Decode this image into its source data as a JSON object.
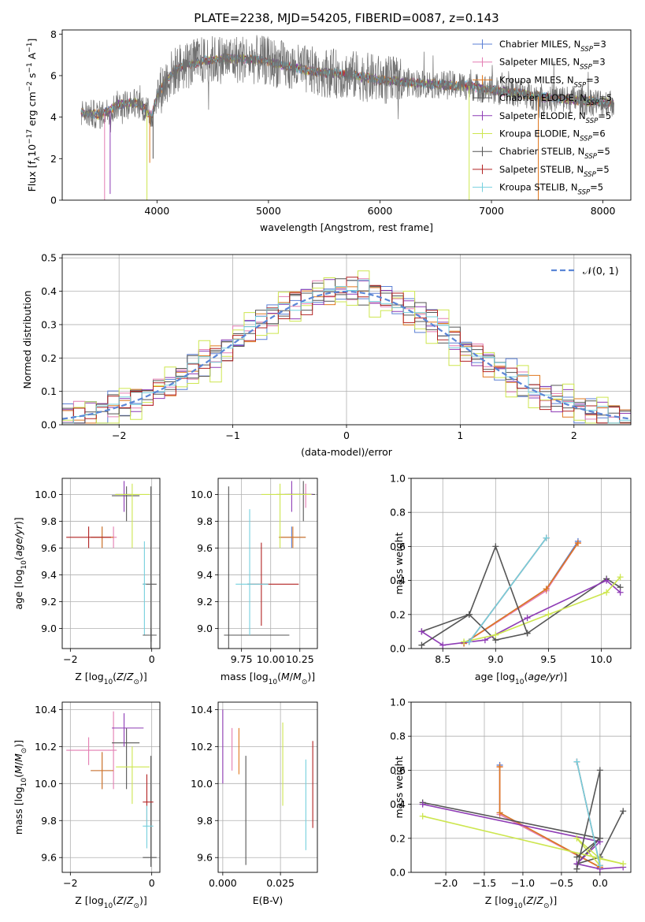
{
  "colors": [
    "#5b7fd4",
    "#e37db2",
    "#e0781f",
    "#555555",
    "#8e3bb5",
    "#cde64f",
    "#555555",
    "#b22222",
    "#74d0de"
  ],
  "legend": {
    "series": [
      {
        "prefix": "Chabrier MILES, N",
        "sub": "SSP",
        "suffix": "=3"
      },
      {
        "prefix": "Salpeter MILES, N",
        "sub": "SSP",
        "suffix": "=3"
      },
      {
        "prefix": "Kroupa MILES, N",
        "sub": "SSP",
        "suffix": "=3"
      },
      {
        "prefix": "Chabrier ELODIE, N",
        "sub": "SSP",
        "suffix": "=5"
      },
      {
        "prefix": "Salpeter ELODIE, N",
        "sub": "SSP",
        "suffix": "=5"
      },
      {
        "prefix": "Kroupa ELODIE, N",
        "sub": "SSP",
        "suffix": "=6"
      },
      {
        "prefix": "Chabrier STELIB, N",
        "sub": "SSP",
        "suffix": "=5"
      },
      {
        "prefix": "Salpeter STELIB, N",
        "sub": "SSP",
        "suffix": "=5"
      },
      {
        "prefix": "Kroupa STELIB, N",
        "sub": "SSP",
        "suffix": "=5"
      }
    ],
    "normal": "𝒩(0, 1)"
  },
  "chart_data": [
    {
      "id": "spectrum",
      "type": "line",
      "title": "PLATE=2238, MJD=54205, FIBERID=0087, z=0.143",
      "xlabel": "wavelength [Angstrom, rest frame]",
      "ylabel": "Flux [f_λ 10^-17 erg cm^-2 s^-1 A^-1]",
      "xlim": [
        3150,
        8250
      ],
      "ylim": [
        0,
        8.2
      ],
      "xticks": [
        4000,
        5000,
        6000,
        7000,
        8000
      ],
      "yticks": [
        0,
        2,
        4,
        6,
        8
      ],
      "continuum": [
        [
          3320,
          4.2
        ],
        [
          3500,
          4.1
        ],
        [
          3650,
          4.6
        ],
        [
          3800,
          4.7
        ],
        [
          3900,
          4.4
        ],
        [
          3950,
          4.0
        ],
        [
          4000,
          5.0
        ],
        [
          4100,
          5.9
        ],
        [
          4200,
          6.4
        ],
        [
          4400,
          6.7
        ],
        [
          4600,
          6.8
        ],
        [
          4800,
          6.8
        ],
        [
          5000,
          6.7
        ],
        [
          5200,
          6.4
        ],
        [
          5400,
          6.2
        ],
        [
          5600,
          6.1
        ],
        [
          5800,
          6.0
        ],
        [
          6000,
          5.8
        ],
        [
          6200,
          5.7
        ],
        [
          6400,
          5.6
        ],
        [
          6600,
          5.55
        ],
        [
          6800,
          5.5
        ],
        [
          7000,
          5.3
        ],
        [
          7200,
          5.2
        ],
        [
          7400,
          5.0
        ],
        [
          7600,
          4.9
        ],
        [
          7800,
          4.8
        ],
        [
          8000,
          4.7
        ],
        [
          8100,
          4.7
        ]
      ],
      "drops": [
        [
          3530,
          0.0
        ],
        [
          3580,
          0.3
        ],
        [
          3910,
          0.0
        ],
        [
          3935,
          1.8
        ],
        [
          3965,
          2.0
        ],
        [
          6800,
          0.0
        ],
        [
          7420,
          0.0
        ]
      ],
      "grid": false,
      "legend": "top-right"
    },
    {
      "id": "hist",
      "type": "bar",
      "xlabel": "(data-model)/error",
      "ylabel": "Normed distribution",
      "xlim": [
        -2.5,
        2.5
      ],
      "ylim": [
        0,
        0.51
      ],
      "xticks": [
        -2,
        -1,
        0,
        1,
        2
      ],
      "yticks": [
        0.0,
        0.1,
        0.2,
        0.3,
        0.4,
        0.5
      ],
      "bin_edges_start": -2.5,
      "bin_width": 0.1,
      "spread": [
        [
          0.02,
          -0.01,
          0.01,
          -0.015,
          0.012,
          -0.012,
          0.015,
          -0.02,
          0.0
        ],
        [
          -0.01,
          0.02,
          0.0,
          0.02,
          -0.015,
          0.01,
          -0.01,
          0.015,
          0.0
        ],
        [
          0.015,
          0.0,
          -0.02,
          -0.01,
          0.02,
          0.03,
          0.01,
          -0.015,
          0.005
        ],
        [
          -0.02,
          0.01,
          0.015,
          0.0,
          0.01,
          -0.02,
          0.02,
          0.0,
          0.01
        ],
        [
          0.03,
          -0.02,
          0.0,
          0.02,
          0.0,
          -0.03,
          -0.01,
          0.02,
          0.01
        ],
        [
          -0.015,
          0.02,
          0.01,
          -0.02,
          0.015,
          0.04,
          0.0,
          -0.01,
          0.02
        ],
        [
          0.0,
          -0.01,
          0.02,
          0.01,
          -0.02,
          -0.04,
          0.015,
          0.02,
          -0.01
        ]
      ],
      "normal_curve": {
        "mean": 0,
        "sigma": 1
      },
      "legend": "top-right",
      "grid": true
    },
    {
      "id": "age_z",
      "type": "scatter",
      "xlabel": "Z [log10(Z/Z⊙)]",
      "ylabel": "age  [log10(age/yr)]",
      "xlim": [
        -2.2,
        0.2
      ],
      "ylim": [
        8.85,
        10.12
      ],
      "xticks": [
        -2,
        0
      ],
      "yticks": [
        9.0,
        9.2,
        9.4,
        9.6,
        9.8,
        10.0
      ],
      "points": [
        {
          "x": -1.22,
          "y": 9.68,
          "xe": [
            -1.5,
            -0.94
          ],
          "ye": [
            9.6,
            9.76
          ],
          "s": 0
        },
        {
          "x": -0.94,
          "y": 9.68,
          "xe": [
            -1.02,
            -0.86
          ],
          "ye": [
            9.6,
            9.76
          ],
          "s": 1
        },
        {
          "x": -1.22,
          "y": 9.68,
          "xe": [
            -1.5,
            -0.94
          ],
          "ye": [
            9.6,
            9.76
          ],
          "s": 2
        },
        {
          "x": -0.62,
          "y": 9.99,
          "xe": [
            -0.98,
            -0.3
          ],
          "ye": [
            9.8,
            10.06
          ],
          "s": 3
        },
        {
          "x": -0.68,
          "y": 10.0,
          "xe": [
            -0.88,
            -0.5
          ],
          "ye": [
            9.87,
            10.1
          ],
          "s": 4
        },
        {
          "x": -0.48,
          "y": 10.0,
          "xe": [
            -0.9,
            -0.05
          ],
          "ye": [
            9.6,
            10.08
          ],
          "s": 5
        },
        {
          "x": -0.02,
          "y": 9.33,
          "xe": [
            -0.22,
            0.12
          ],
          "ye": [
            8.6,
            10.06
          ],
          "s": 6
        },
        {
          "x": -1.55,
          "y": 9.68,
          "xe": [
            -2.1,
            -1.0
          ],
          "ye": [
            9.6,
            9.76
          ],
          "s": 7
        },
        {
          "x": -0.18,
          "y": 9.33,
          "xe": [
            -0.22,
            -0.14
          ],
          "ye": [
            8.95,
            9.65
          ],
          "s": 8
        },
        {
          "x": -0.02,
          "y": 8.95,
          "xe": [
            -0.22,
            0.12
          ],
          "ye": [
            8.9,
            9.0
          ],
          "s": 3
        }
      ],
      "grid": true
    },
    {
      "id": "age_mass",
      "type": "scatter",
      "xlabel": "mass [log10(M/M⊙)]",
      "ylabel": "",
      "xlim": [
        9.55,
        10.4
      ],
      "ylim": [
        8.85,
        10.12
      ],
      "xticks": [
        9.75,
        10.0,
        10.25
      ],
      "yticks": [
        9.0,
        9.2,
        9.4,
        9.6,
        9.8,
        10.0
      ],
      "points": [
        {
          "x": 10.18,
          "y": 9.68,
          "xe": [
            10.07,
            10.3
          ],
          "ye": [
            9.6,
            9.76
          ],
          "s": 0
        },
        {
          "x": 10.3,
          "y": 10.0,
          "xe": [
            10.15,
            10.36
          ],
          "ye": [
            9.9,
            10.08
          ],
          "s": 1
        },
        {
          "x": 10.19,
          "y": 9.68,
          "xe": [
            10.07,
            10.3
          ],
          "ye": [
            9.6,
            9.76
          ],
          "s": 2
        },
        {
          "x": 10.28,
          "y": 10.0,
          "xe": [
            10.12,
            10.38
          ],
          "ye": [
            9.8,
            10.1
          ],
          "s": 3
        },
        {
          "x": 10.18,
          "y": 10.0,
          "xe": [
            10.05,
            10.36
          ],
          "ye": [
            9.87,
            10.1
          ],
          "s": 4
        },
        {
          "x": 10.08,
          "y": 10.0,
          "xe": [
            9.92,
            10.35
          ],
          "ye": [
            9.6,
            10.08
          ],
          "s": 5
        },
        {
          "x": 9.64,
          "y": 8.95,
          "xe": [
            9.6,
            10.16
          ],
          "ye": [
            8.6,
            10.06
          ],
          "s": 6
        },
        {
          "x": 9.92,
          "y": 9.33,
          "xe": [
            9.8,
            10.24
          ],
          "ye": [
            9.02,
            9.64
          ],
          "s": 7
        },
        {
          "x": 9.82,
          "y": 9.33,
          "xe": [
            9.7,
            9.98
          ],
          "ye": [
            8.95,
            9.89
          ],
          "s": 8
        }
      ],
      "grid": true
    },
    {
      "id": "massweight_age",
      "type": "line",
      "xlabel": "age  [log10(age/yr)]",
      "ylabel": "mass weight",
      "xlim": [
        8.2,
        10.28
      ],
      "ylim": [
        0,
        1.0
      ],
      "xticks": [
        8.5,
        9.0,
        9.5,
        10.0
      ],
      "yticks": [
        0.0,
        0.2,
        0.4,
        0.6,
        0.8,
        1.0
      ],
      "series": [
        {
          "s": 0,
          "x": [
            8.7,
            9.48,
            9.78
          ],
          "y": [
            0.03,
            0.35,
            0.63
          ]
        },
        {
          "s": 1,
          "x": [
            8.7,
            9.48,
            9.78
          ],
          "y": [
            0.03,
            0.34,
            0.62
          ]
        },
        {
          "s": 2,
          "x": [
            8.7,
            9.48,
            9.78
          ],
          "y": [
            0.03,
            0.35,
            0.62
          ]
        },
        {
          "s": 3,
          "x": [
            8.3,
            8.75,
            9.0,
            9.3,
            10.05,
            10.18
          ],
          "y": [
            0.1,
            0.2,
            0.05,
            0.09,
            0.41,
            0.36
          ]
        },
        {
          "s": 4,
          "x": [
            8.3,
            8.5,
            8.9,
            9.3,
            10.05,
            10.18
          ],
          "y": [
            0.1,
            0.02,
            0.05,
            0.18,
            0.4,
            0.33
          ]
        },
        {
          "s": 5,
          "x": [
            8.7,
            9.0,
            9.5,
            10.05,
            10.18
          ],
          "y": [
            0.04,
            0.08,
            0.2,
            0.33,
            0.42
          ]
        },
        {
          "s": 6,
          "x": [
            8.3,
            8.75,
            9.0,
            9.3
          ],
          "y": [
            0.02,
            0.2,
            0.6,
            0.09
          ]
        },
        {
          "s": 7,
          "x": [
            8.75,
            9.48
          ],
          "y": [
            0.04,
            0.65
          ]
        },
        {
          "s": 8,
          "x": [
            8.75,
            9.48
          ],
          "y": [
            0.04,
            0.65
          ]
        }
      ],
      "grid": true
    },
    {
      "id": "mass_z",
      "type": "scatter",
      "xlabel": "Z [log10(Z/Z⊙)]",
      "ylabel": "mass [log10(M/M⊙)]",
      "xlim": [
        -2.2,
        0.2
      ],
      "ylim": [
        9.52,
        10.44
      ],
      "xticks": [
        -2,
        0
      ],
      "yticks": [
        9.6,
        9.8,
        10.0,
        10.2,
        10.4
      ],
      "points": [
        {
          "x": -1.22,
          "y": 10.07,
          "xe": [
            -1.5,
            -0.94
          ],
          "ye": [
            9.97,
            10.17
          ],
          "s": 0
        },
        {
          "x": -0.94,
          "y": 10.18,
          "xe": [
            -1.02,
            -0.86
          ],
          "ye": [
            9.97,
            10.39
          ],
          "s": 1
        },
        {
          "x": -1.22,
          "y": 10.07,
          "xe": [
            -1.5,
            -0.94
          ],
          "ye": [
            9.97,
            10.17
          ],
          "s": 2
        },
        {
          "x": -0.62,
          "y": 10.22,
          "xe": [
            -0.98,
            -0.3
          ],
          "ye": [
            9.97,
            10.3
          ],
          "s": 3
        },
        {
          "x": -0.68,
          "y": 10.3,
          "xe": [
            -0.98,
            -0.2
          ],
          "ye": [
            10.2,
            10.38
          ],
          "s": 4
        },
        {
          "x": -0.48,
          "y": 10.09,
          "xe": [
            -0.88,
            -0.05
          ],
          "ye": [
            9.89,
            10.2
          ],
          "s": 5
        },
        {
          "x": -0.02,
          "y": 9.6,
          "xe": [
            -0.22,
            0.12
          ],
          "ye": [
            9.55,
            10.15
          ],
          "s": 6
        },
        {
          "x": -0.12,
          "y": 9.9,
          "xe": [
            -0.22,
            0.04
          ],
          "ye": [
            9.76,
            10.05
          ],
          "s": 7
        },
        {
          "x": -0.12,
          "y": 9.77,
          "xe": [
            -0.22,
            0.04
          ],
          "ye": [
            9.65,
            9.88
          ],
          "s": 8
        },
        {
          "x": -1.55,
          "y": 10.18,
          "xe": [
            -2.1,
            -1.0
          ],
          "ye": [
            10.1,
            10.25
          ],
          "s": 1
        }
      ],
      "grid": true
    },
    {
      "id": "mass_ebv",
      "type": "scatter",
      "xlabel": "E(B-V)",
      "ylabel": "",
      "xlim": [
        -0.002,
        0.041
      ],
      "ylim": [
        9.52,
        10.44
      ],
      "xticks": [
        0.0,
        0.025
      ],
      "yticks": [
        9.6,
        9.8,
        10.0,
        10.2,
        10.4
      ],
      "points": [
        {
          "x": 0.0,
          "y": 10.2,
          "ye": [
            10.0,
            10.4
          ],
          "s": 4
        },
        {
          "x": 0.004,
          "y": 10.18,
          "ye": [
            10.07,
            10.3
          ],
          "s": 1
        },
        {
          "x": 0.007,
          "y": 10.18,
          "ye": [
            10.05,
            10.3
          ],
          "s": 2
        },
        {
          "x": 0.01,
          "y": 9.85,
          "ye": [
            9.56,
            10.15
          ],
          "s": 6
        },
        {
          "x": 0.026,
          "y": 10.1,
          "ye": [
            9.88,
            10.33
          ],
          "s": 5
        },
        {
          "x": 0.036,
          "y": 9.9,
          "ye": [
            9.64,
            10.13
          ],
          "s": 8
        },
        {
          "x": 0.039,
          "y": 10.0,
          "ye": [
            9.76,
            10.23
          ],
          "s": 7
        }
      ],
      "grid": true
    },
    {
      "id": "massweight_z",
      "type": "line",
      "xlabel": "Z [log10(Z/Z⊙)]",
      "ylabel": "mass weight",
      "xlim": [
        -2.45,
        0.4
      ],
      "ylim": [
        0,
        1.0
      ],
      "xticks": [
        -2.0,
        -1.5,
        -1.0,
        -0.5,
        0.0
      ],
      "yticks": [
        0.0,
        0.2,
        0.4,
        0.6,
        0.8,
        1.0
      ],
      "series": [
        {
          "s": 0,
          "x": [
            -1.3,
            -1.3,
            0.0
          ],
          "y": [
            0.63,
            0.35,
            0.03
          ]
        },
        {
          "s": 1,
          "x": [
            -1.3,
            -1.3,
            0.0
          ],
          "y": [
            0.62,
            0.34,
            0.03
          ]
        },
        {
          "s": 2,
          "x": [
            -1.3,
            -1.3,
            0.0
          ],
          "y": [
            0.62,
            0.35,
            0.03
          ]
        },
        {
          "s": 3,
          "x": [
            -2.3,
            0.0,
            -0.3,
            0.0,
            0.3
          ],
          "y": [
            0.41,
            0.2,
            0.05,
            0.09,
            0.36
          ]
        },
        {
          "s": 4,
          "x": [
            -2.3,
            0.0,
            -0.3,
            0.0,
            0.3
          ],
          "y": [
            0.4,
            0.18,
            0.05,
            0.02,
            0.03
          ]
        },
        {
          "s": 5,
          "x": [
            -2.3,
            0.3,
            0.0,
            -0.3,
            0.0
          ],
          "y": [
            0.33,
            0.05,
            0.08,
            0.2,
            0.04
          ]
        },
        {
          "s": 6,
          "x": [
            -0.3,
            0.0,
            0.0,
            -0.3
          ],
          "y": [
            0.02,
            0.6,
            0.2,
            0.09
          ]
        },
        {
          "s": 7,
          "x": [
            -0.3,
            0.0
          ],
          "y": [
            0.65,
            0.04
          ]
        },
        {
          "s": 8,
          "x": [
            -0.3,
            0.0
          ],
          "y": [
            0.65,
            0.04
          ]
        }
      ],
      "grid": true
    }
  ]
}
